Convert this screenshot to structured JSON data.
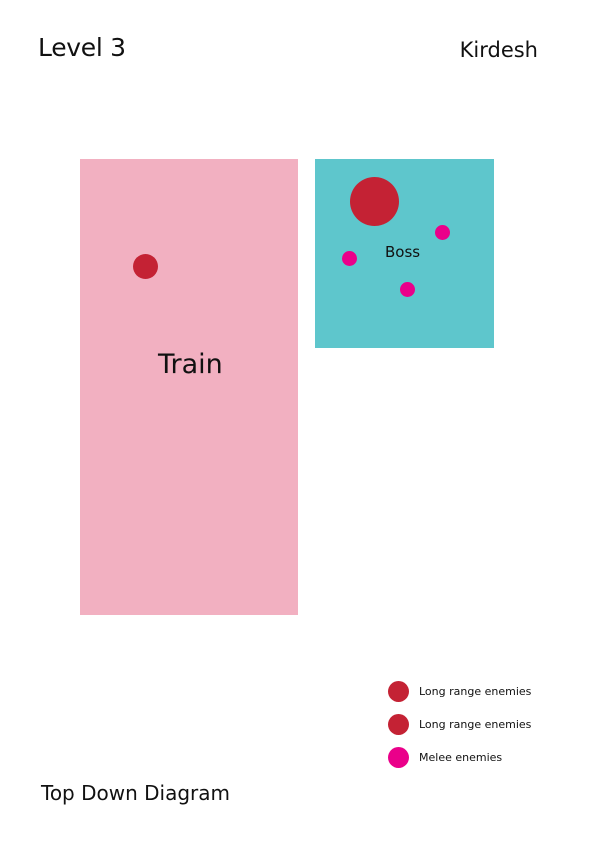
{
  "header": {
    "level": "Level 3",
    "location": "Kirdesh"
  },
  "zones": {
    "train": {
      "label": "Train",
      "color": "#f2b0c1"
    },
    "boss_room": {
      "label": "Boss",
      "color": "#5ec6cc"
    }
  },
  "enemies": {
    "long_range_color": "#c42234",
    "boss_color": "#c42234",
    "melee_color": "#ea008a"
  },
  "legend": {
    "items": [
      {
        "label": "Long range enemies",
        "color": "#c42234"
      },
      {
        "label": "Long range enemies",
        "color": "#c42234"
      },
      {
        "label": "Melee enemies",
        "color": "#ea008a"
      }
    ]
  },
  "footer": {
    "title": "Top Down Diagram"
  }
}
